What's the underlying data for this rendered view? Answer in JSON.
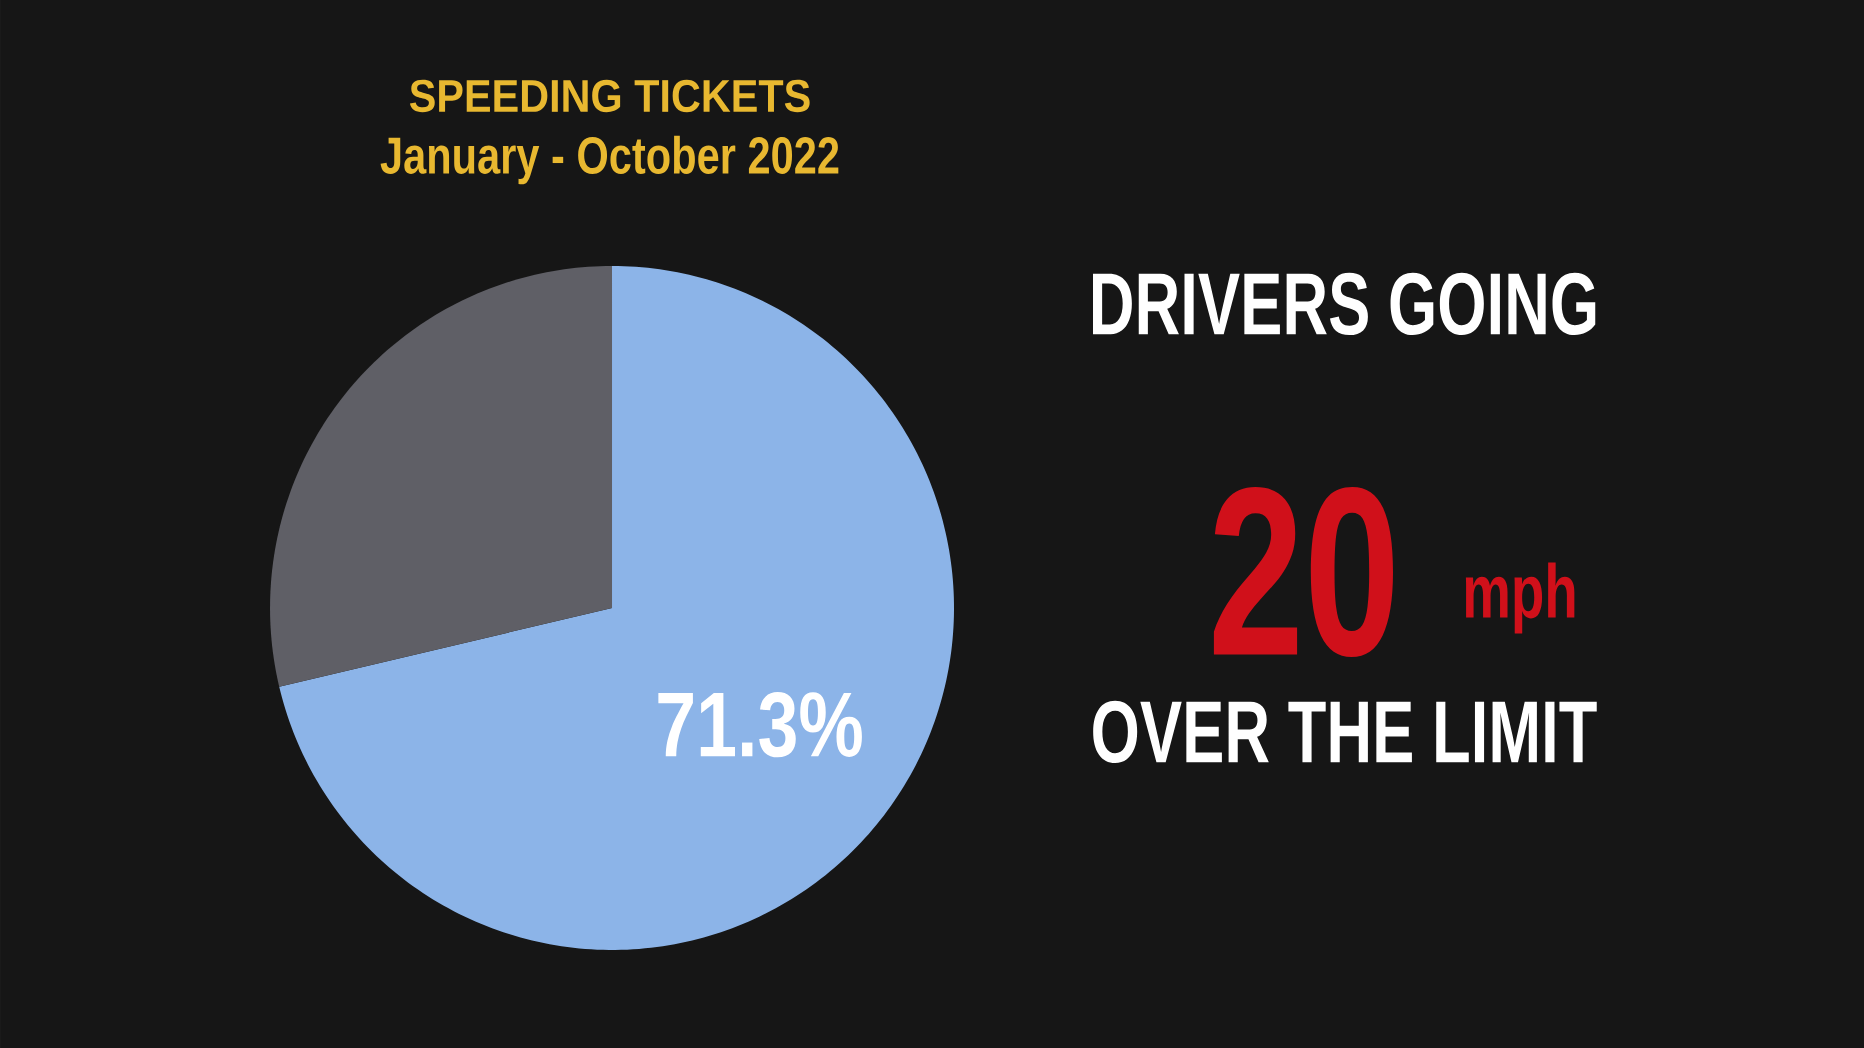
{
  "chart_data": {
    "type": "pie",
    "title": "SPEEDING TICKETS",
    "subtitle": "January - October 2022",
    "categories": [
      null,
      null
    ],
    "values": [
      71.3,
      28.7
    ],
    "colors": [
      "#8cb4e8",
      "#5f5f66"
    ],
    "value_labels": [
      "71.3%",
      null
    ],
    "annotations": [
      "DRIVERS GOING",
      "20",
      "mph",
      "OVER THE LIMIT"
    ]
  }
}
